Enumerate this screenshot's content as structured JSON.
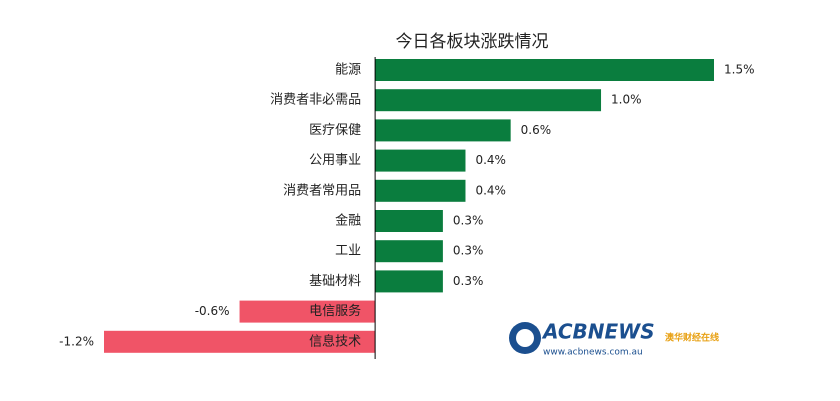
{
  "chart_data": {
    "type": "hbar",
    "title": "今日各板块涨跌情况",
    "categories": [
      "能源",
      "消费者非必需品",
      "医疗保健",
      "公用事业",
      "消费者常用品",
      "金融",
      "工业",
      "基础材料",
      "电信服务",
      "信息技术"
    ],
    "values": [
      1.5,
      1.0,
      0.6,
      0.4,
      0.4,
      0.3,
      0.3,
      0.3,
      -0.6,
      -1.2
    ],
    "value_labels": [
      "1.5%",
      "1.0%",
      "0.6%",
      "0.4%",
      "0.4%",
      "0.3%",
      "0.3%",
      "0.3%",
      "-0.6%",
      "-1.2%"
    ],
    "positive_color": "#0a7d3e",
    "negative_color": "#f05467"
  },
  "logo": {
    "brand": "ACBNEWS",
    "tagline": "澳华财经在线",
    "url": "www.acbnews.com.au"
  }
}
